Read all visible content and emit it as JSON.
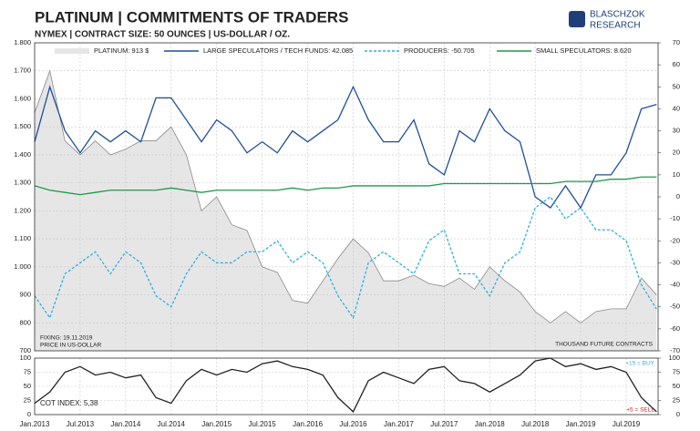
{
  "logo": [
    "BLASCHZOK",
    "RESEARCH"
  ],
  "chart_data": [
    {
      "type": "line",
      "title": "PLATINUM | COMMITMENTS OF TRADERS",
      "subtitle": "NYMEX | CONTRACT SIZE: 50 OUNCES | US-DOLLAR / OZ.",
      "fixing_note": "FIXING: 19.11.2019",
      "price_note": "PRICE IN US-DOLLAR",
      "units_note": "THOUSAND FUTURE CONTRACTS",
      "grid": true,
      "x": [
        2013.0,
        2013.167,
        2013.333,
        2013.5,
        2013.667,
        2013.833,
        2014.0,
        2014.167,
        2014.333,
        2014.5,
        2014.667,
        2014.833,
        2015.0,
        2015.167,
        2015.333,
        2015.5,
        2015.667,
        2015.833,
        2016.0,
        2016.167,
        2016.333,
        2016.5,
        2016.667,
        2016.833,
        2017.0,
        2017.167,
        2017.333,
        2017.5,
        2017.667,
        2017.833,
        2018.0,
        2018.167,
        2018.333,
        2018.5,
        2018.667,
        2018.833,
        2019.0,
        2019.167,
        2019.333,
        2019.5,
        2019.667,
        2019.833
      ],
      "xlim": [
        2013.0,
        2019.85
      ],
      "ylim": [
        700,
        1800
      ],
      "yticks": [
        {
          "value": 1800,
          "label": "1.800"
        },
        {
          "value": 1700,
          "label": "1.700"
        },
        {
          "value": 1600,
          "label": "1.600"
        },
        {
          "value": 1500,
          "label": "1.500"
        },
        {
          "value": 1400,
          "label": "1.400"
        },
        {
          "value": 1300,
          "label": "1.300"
        },
        {
          "value": 1200,
          "label": "1.200"
        },
        {
          "value": 1100,
          "label": "1.100"
        },
        {
          "value": 1000,
          "label": "1.000"
        },
        900,
        800,
        700
      ],
      "y2lim": [
        -70,
        70
      ],
      "y2ticks": [
        70,
        60,
        50,
        40,
        30,
        20,
        10,
        0,
        -10,
        -20,
        -30,
        -40,
        -50,
        -60,
        -70
      ],
      "series": [
        {
          "name": "PLATINUM: 913 $",
          "color": "#8a8a8a",
          "fill": "#e6e6e6",
          "kind": "area",
          "values": [
            1550,
            1700,
            1450,
            1400,
            1450,
            1400,
            1420,
            1450,
            1450,
            1500,
            1400,
            1200,
            1250,
            1150,
            1130,
            1000,
            980,
            880,
            870,
            950,
            1030,
            1100,
            1050,
            950,
            950,
            970,
            940,
            930,
            960,
            920,
            1000,
            950,
            910,
            840,
            800,
            840,
            800,
            840,
            850,
            850,
            960,
            900
          ]
        },
        {
          "name": "LARGE SPECULATORS / TECH FUNDS: 42.085",
          "color": "#1f4e9c",
          "axis": "y2",
          "values": [
            25,
            50,
            30,
            20,
            30,
            25,
            30,
            25,
            45,
            45,
            35,
            25,
            35,
            30,
            20,
            25,
            20,
            30,
            25,
            30,
            35,
            50,
            35,
            25,
            25,
            35,
            15,
            10,
            30,
            25,
            40,
            30,
            25,
            0,
            -5,
            5,
            -5,
            10,
            10,
            20,
            40,
            42
          ]
        },
        {
          "name": "PRODUCERS: -50.705",
          "color": "#2bb0e0",
          "axis": "y2",
          "dashed": true,
          "values": [
            -45,
            -55,
            -35,
            -30,
            -25,
            -35,
            -25,
            -30,
            -45,
            -50,
            -35,
            -25,
            -30,
            -30,
            -25,
            -25,
            -20,
            -30,
            -25,
            -30,
            -45,
            -55,
            -30,
            -25,
            -30,
            -35,
            -20,
            -15,
            -35,
            -35,
            -45,
            -30,
            -25,
            -5,
            0,
            -10,
            -5,
            -15,
            -15,
            -20,
            -40,
            -51
          ]
        },
        {
          "name": "SMALL SPECULATORS: 8.620",
          "color": "#1e9a4a",
          "axis": "y2",
          "values": [
            5,
            3,
            2,
            1,
            2,
            3,
            3,
            3,
            3,
            4,
            3,
            2,
            3,
            3,
            3,
            3,
            3,
            4,
            3,
            4,
            4,
            5,
            5,
            5,
            5,
            5,
            5,
            6,
            6,
            6,
            6,
            6,
            6,
            6,
            6,
            7,
            7,
            7,
            8,
            8,
            9,
            9
          ]
        }
      ]
    },
    {
      "type": "line",
      "index_label": "COT INDEX: 5,38",
      "buy_label": "+15 = BUY",
      "sell_label": "+5 = SELL",
      "grid": true,
      "x": [
        2013.0,
        2013.167,
        2013.333,
        2013.5,
        2013.667,
        2013.833,
        2014.0,
        2014.167,
        2014.333,
        2014.5,
        2014.667,
        2014.833,
        2015.0,
        2015.167,
        2015.333,
        2015.5,
        2015.667,
        2015.833,
        2016.0,
        2016.167,
        2016.333,
        2016.5,
        2016.667,
        2016.833,
        2017.0,
        2017.167,
        2017.333,
        2017.5,
        2017.667,
        2017.833,
        2018.0,
        2018.167,
        2018.333,
        2018.5,
        2018.667,
        2018.833,
        2019.0,
        2019.167,
        2019.333,
        2019.5,
        2019.667,
        2019.833
      ],
      "xlim": [
        2013.0,
        2019.85
      ],
      "xticks": [
        {
          "value": 2013.0,
          "label": "Jan.2013"
        },
        {
          "value": 2013.5,
          "label": "Jul.2013"
        },
        {
          "value": 2014.0,
          "label": "Jan.2014"
        },
        {
          "value": 2014.5,
          "label": "Jul.2014"
        },
        {
          "value": 2015.0,
          "label": "Jan.2015"
        },
        {
          "value": 2015.5,
          "label": "Jul.2015"
        },
        {
          "value": 2016.0,
          "label": "Jan.2016"
        },
        {
          "value": 2016.5,
          "label": "Jul.2016"
        },
        {
          "value": 2017.0,
          "label": "Jan.2017"
        },
        {
          "value": 2017.5,
          "label": "Jul.2017"
        },
        {
          "value": 2018.0,
          "label": "Jan.2018"
        },
        {
          "value": 2018.5,
          "label": "Jul.2018"
        },
        {
          "value": 2019.0,
          "label": "Jan.2019"
        },
        {
          "value": 2019.5,
          "label": "Jul.2019"
        }
      ],
      "ylim": [
        0,
        100
      ],
      "yticks": [
        0,
        25,
        50,
        75,
        100
      ],
      "y2ticks": [
        0,
        25,
        50,
        75,
        100
      ],
      "series": [
        {
          "color": "#222222",
          "values": [
            20,
            40,
            75,
            85,
            70,
            75,
            65,
            70,
            30,
            20,
            60,
            80,
            70,
            80,
            75,
            90,
            95,
            85,
            80,
            70,
            30,
            5,
            60,
            75,
            65,
            55,
            80,
            85,
            60,
            55,
            40,
            55,
            70,
            95,
            100,
            85,
            90,
            80,
            85,
            75,
            30,
            5
          ]
        }
      ]
    }
  ]
}
